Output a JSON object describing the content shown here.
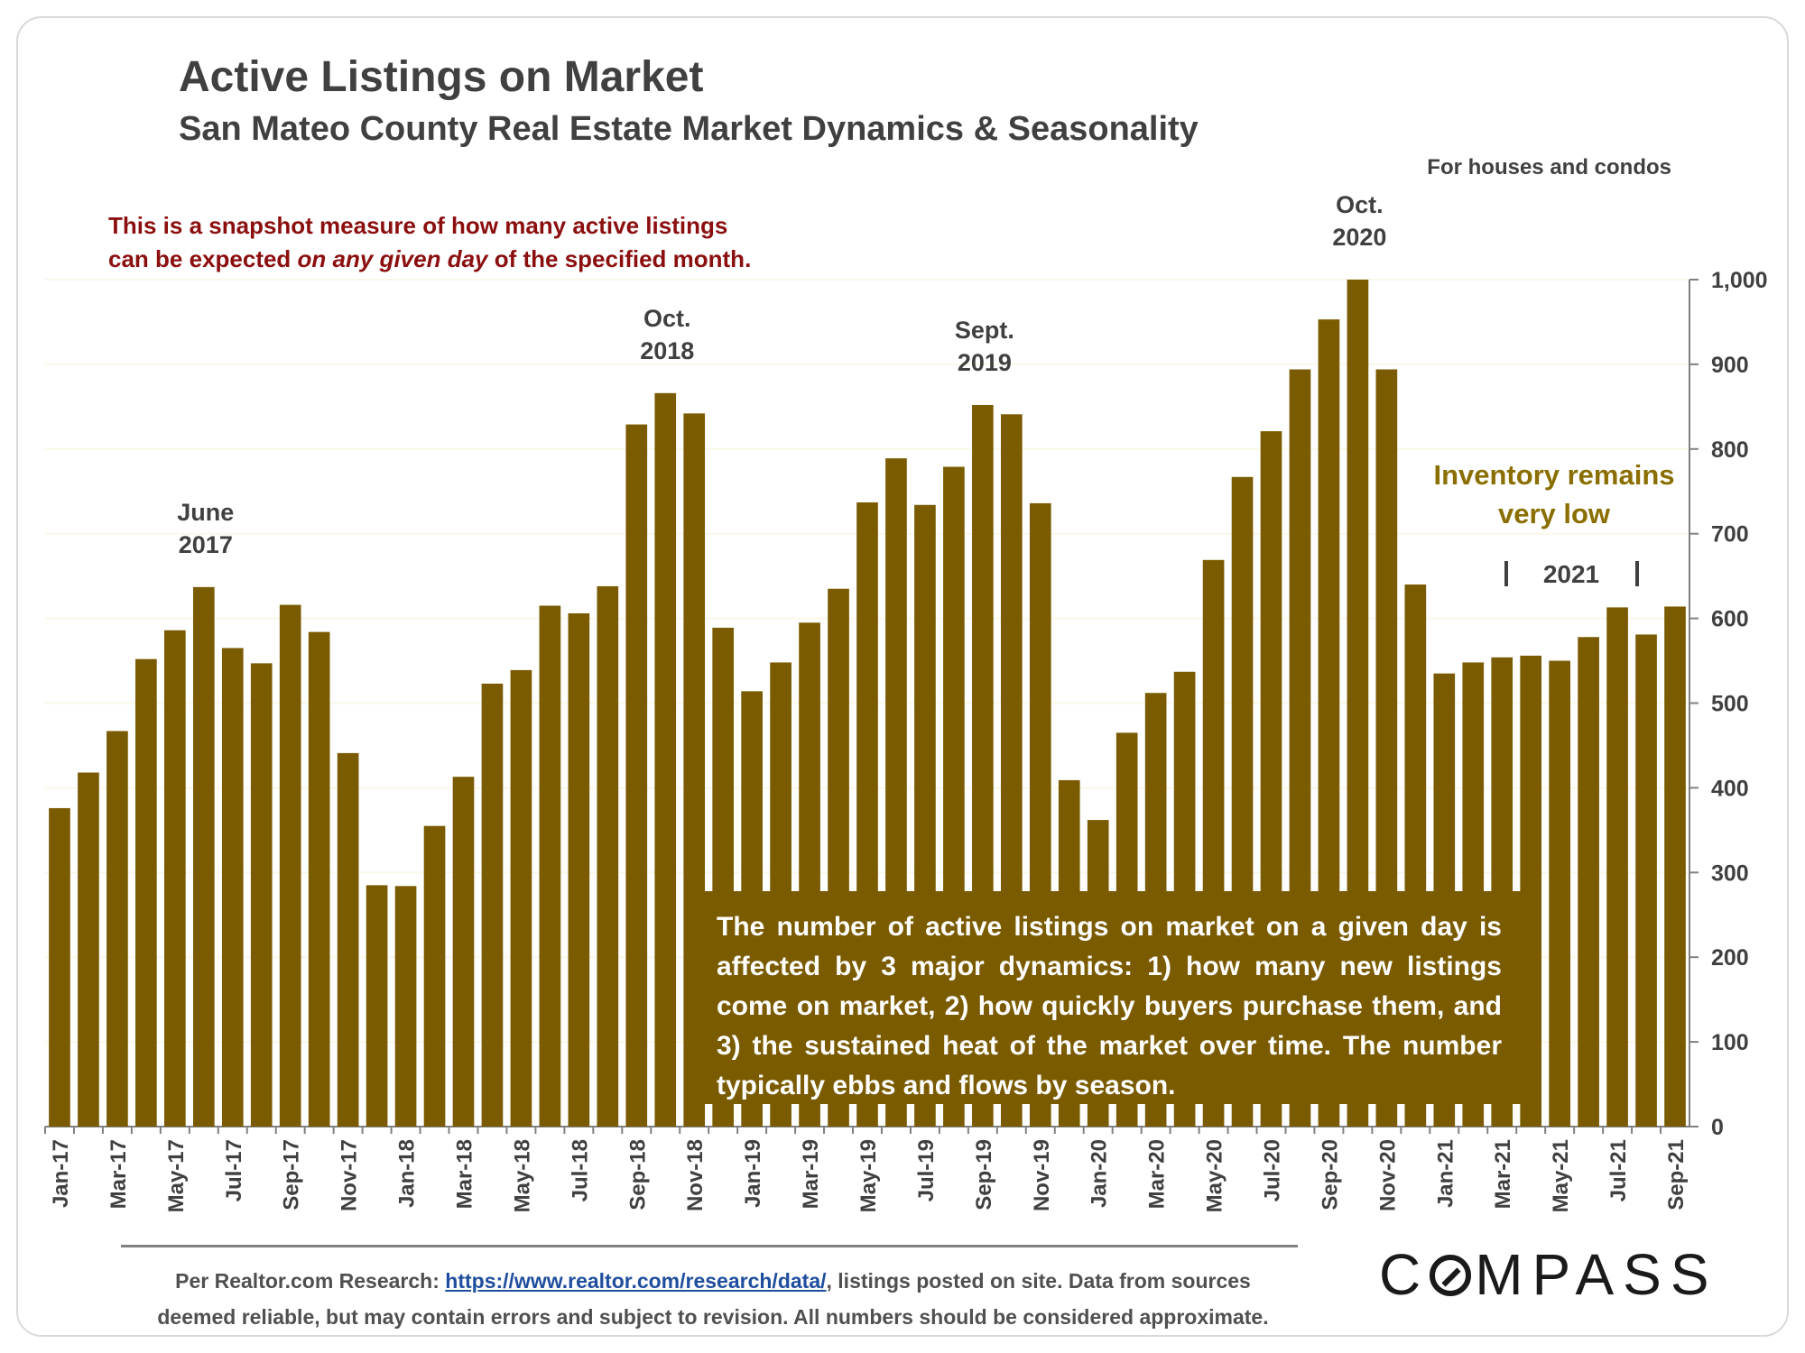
{
  "header": {
    "title": "Active Listings on Market",
    "subtitle": "San Mateo County Real Estate Market Dynamics & Seasonality",
    "scope": "For houses and condos"
  },
  "note": {
    "part1": "This is a snapshot measure of how many active listings",
    "part2": "can be expected ",
    "emphasis": "on any given day",
    "part3": " of the specified month."
  },
  "explanation": "The number of active listings on market on a given day is affected by 3 major dynamics: 1) how many new listings come on market, 2) how quickly buyers purchase them, and 3) the sustained heat of the market over time. The number typically ebbs and flows by season.",
  "footer": {
    "prefix": "Per Realtor.com Research: ",
    "link": "https://www.realtor.com/research/data/",
    "suffix": ", listings posted on site. Data from sources",
    "line2": "deemed reliable, but may contain errors and subject to revision. All numbers should be considered approximate."
  },
  "brand": {
    "before": "C",
    "after": "MPASS",
    "icon": "compass-o-icon"
  },
  "colors": {
    "bar": "#7a5b00",
    "note": "#8b0f0f",
    "callout": "#7a5b00",
    "axis": "#404040",
    "grid": "#fbf7e8"
  },
  "chart_data": {
    "type": "bar",
    "title": "Active Listings on Market",
    "ylim": [
      0,
      1000
    ],
    "yticks": [
      "0",
      "100",
      "200",
      "300",
      "400",
      "500",
      "600",
      "700",
      "800",
      "900",
      "1,000"
    ],
    "grid": true,
    "categories": [
      "Jan-17",
      "Feb-17",
      "Mar-17",
      "Apr-17",
      "May-17",
      "Jun-17",
      "Jul-17",
      "Aug-17",
      "Sep-17",
      "Oct-17",
      "Nov-17",
      "Dec-17",
      "Jan-18",
      "Feb-18",
      "Mar-18",
      "Apr-18",
      "May-18",
      "Jun-18",
      "Jul-18",
      "Aug-18",
      "Sep-18",
      "Oct-18",
      "Nov-18",
      "Dec-18",
      "Jan-19",
      "Feb-19",
      "Mar-19",
      "Apr-19",
      "May-19",
      "Jun-19",
      "Jul-19",
      "Aug-19",
      "Sep-19",
      "Oct-19",
      "Nov-19",
      "Dec-19",
      "Jan-20",
      "Feb-20",
      "Mar-20",
      "Apr-20",
      "May-20",
      "Jun-20",
      "Jul-20",
      "Aug-20",
      "Sep-20",
      "Oct-20",
      "Nov-20",
      "Dec-20",
      "Jan-21",
      "Feb-21",
      "Mar-21",
      "Apr-21",
      "May-21",
      "Jun-21",
      "Jul-21",
      "Aug-21",
      "Sep-21"
    ],
    "tick_labels": [
      "Jan-17",
      "Mar-17",
      "May-17",
      "Jul-17",
      "Sep-17",
      "Nov-17",
      "Jan-18",
      "Mar-18",
      "May-18",
      "Jul-18",
      "Sep-18",
      "Nov-18",
      "Jan-19",
      "Mar-19",
      "May-19",
      "Jul-19",
      "Sep-19",
      "Nov-19",
      "Jan-20",
      "Mar-20",
      "May-20",
      "Jul-20",
      "Sep-20",
      "Nov-20",
      "Jan-21",
      "Mar-21",
      "May-21",
      "Jul-21",
      "Sep-21"
    ],
    "values": [
      376,
      418,
      467,
      552,
      586,
      637,
      565,
      547,
      616,
      584,
      441,
      285,
      284,
      355,
      413,
      523,
      539,
      615,
      606,
      638,
      829,
      866,
      842,
      589,
      514,
      548,
      595,
      635,
      737,
      789,
      734,
      779,
      852,
      841,
      736,
      409,
      362,
      465,
      512,
      537,
      669,
      767,
      821,
      894,
      953,
      1000,
      894,
      640,
      535,
      548,
      554,
      556,
      550,
      578,
      613,
      581,
      614
    ],
    "annotations": [
      {
        "line1": "June",
        "line2": "2017",
        "index": 5
      },
      {
        "line1": "Oct.",
        "line2": "2018",
        "index": 21
      },
      {
        "line1": "Sept.",
        "line2": "2019",
        "index": 32
      },
      {
        "line1": "Oct.",
        "line2": "2020",
        "index": 45
      }
    ],
    "callout": {
      "line1": "Inventory remains",
      "line2": "very low",
      "period": "2021"
    }
  }
}
